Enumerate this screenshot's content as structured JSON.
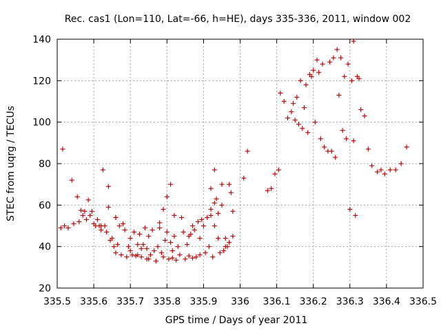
{
  "chart_data": {
    "type": "scatter",
    "title": "Rec. cas1 (Lon=110, Lat=-66, h=HE), days 335-336, 2011, window 002",
    "xlabel": "GPS time / Days of year 2011",
    "ylabel": "STEC from uqrg / TECUs",
    "xlim": [
      335.5,
      336.5
    ],
    "ylim": [
      20,
      140
    ],
    "xticks": [
      "335.5",
      "335.6",
      "335.7",
      "335.8",
      "335.9",
      "336",
      "336.1",
      "336.2",
      "336.3",
      "336.4",
      "336.5"
    ],
    "yticks": [
      "20",
      "40",
      "60",
      "80",
      "100",
      "120",
      "140"
    ],
    "grid": true,
    "marker": "+",
    "color": "#c80000",
    "points": [
      [
        335.51,
        49
      ],
      [
        335.515,
        87
      ],
      [
        335.52,
        50
      ],
      [
        335.53,
        49
      ],
      [
        335.54,
        72
      ],
      [
        335.545,
        51
      ],
      [
        335.555,
        64
      ],
      [
        335.56,
        52
      ],
      [
        335.565,
        57.5
      ],
      [
        335.57,
        55
      ],
      [
        335.575,
        57
      ],
      [
        335.58,
        53
      ],
      [
        335.585,
        62.5
      ],
      [
        335.59,
        55
      ],
      [
        335.595,
        57
      ],
      [
        335.6,
        51
      ],
      [
        335.605,
        50
      ],
      [
        335.61,
        53
      ],
      [
        335.615,
        50
      ],
      [
        335.62,
        48
      ],
      [
        335.625,
        77
      ],
      [
        335.63,
        50
      ],
      [
        335.635,
        47
      ],
      [
        335.64,
        59
      ],
      [
        335.64,
        69
      ],
      [
        335.645,
        43
      ],
      [
        335.65,
        44
      ],
      [
        335.655,
        40
      ],
      [
        335.66,
        54
      ],
      [
        335.66,
        37
      ],
      [
        335.665,
        41
      ],
      [
        335.67,
        50
      ],
      [
        335.675,
        36
      ],
      [
        335.68,
        51
      ],
      [
        335.685,
        48
      ],
      [
        335.69,
        35
      ],
      [
        335.695,
        40
      ],
      [
        335.7,
        44
      ],
      [
        335.7,
        38
      ],
      [
        335.705,
        36
      ],
      [
        335.71,
        47
      ],
      [
        335.715,
        35.5
      ],
      [
        335.72,
        41
      ],
      [
        335.72,
        36
      ],
      [
        335.725,
        46
      ],
      [
        335.73,
        39
      ],
      [
        335.73,
        35
      ],
      [
        335.735,
        41
      ],
      [
        335.74,
        49
      ],
      [
        335.745,
        39
      ],
      [
        335.745,
        34
      ],
      [
        335.75,
        45
      ],
      [
        335.755,
        36
      ],
      [
        335.76,
        48
      ],
      [
        335.765,
        38
      ],
      [
        335.77,
        33
      ],
      [
        335.775,
        40
      ],
      [
        335.78,
        49
      ],
      [
        335.78,
        51.5
      ],
      [
        335.785,
        37
      ],
      [
        335.79,
        35
      ],
      [
        335.795,
        43
      ],
      [
        335.8,
        47
      ],
      [
        335.805,
        34
      ],
      [
        335.81,
        42
      ],
      [
        335.815,
        38
      ],
      [
        335.815,
        34.5
      ],
      [
        335.82,
        55
      ],
      [
        335.82,
        45
      ],
      [
        335.825,
        33.5
      ],
      [
        335.83,
        40
      ],
      [
        335.835,
        36
      ],
      [
        335.84,
        54
      ],
      [
        335.845,
        47
      ],
      [
        335.85,
        34
      ],
      [
        335.855,
        41
      ],
      [
        335.86,
        45
      ],
      [
        335.86,
        35.5
      ],
      [
        335.865,
        46
      ],
      [
        335.87,
        34.5
      ],
      [
        335.875,
        48
      ],
      [
        335.88,
        35
      ],
      [
        335.885,
        52
      ],
      [
        335.89,
        44
      ],
      [
        335.89,
        36
      ],
      [
        335.895,
        53
      ],
      [
        335.9,
        50
      ],
      [
        335.905,
        37
      ],
      [
        335.91,
        54
      ],
      [
        335.915,
        40
      ],
      [
        335.92,
        55
      ],
      [
        335.92,
        58
      ],
      [
        335.925,
        35
      ],
      [
        335.93,
        50
      ],
      [
        335.935,
        63
      ],
      [
        335.94,
        44
      ],
      [
        335.945,
        37
      ],
      [
        335.95,
        60
      ],
      [
        335.955,
        38
      ],
      [
        335.96,
        40
      ],
      [
        335.965,
        40
      ],
      [
        335.97,
        70
      ],
      [
        335.975,
        66
      ],
      [
        335.98,
        57
      ],
      [
        335.62,
        50
      ],
      [
        335.66,
        54
      ],
      [
        335.75,
        34
      ],
      [
        335.79,
        58
      ],
      [
        335.8,
        64
      ],
      [
        335.81,
        70
      ],
      [
        335.87,
        50
      ],
      [
        335.92,
        68
      ],
      [
        335.93,
        61
      ],
      [
        335.93,
        77
      ],
      [
        335.94,
        56
      ],
      [
        335.95,
        70
      ],
      [
        335.96,
        44
      ],
      [
        335.97,
        42
      ],
      [
        335.98,
        45
      ],
      [
        336.01,
        73
      ],
      [
        336.02,
        86
      ],
      [
        336.075,
        67
      ],
      [
        336.085,
        68
      ],
      [
        336.095,
        75
      ],
      [
        336.105,
        77
      ],
      [
        336.11,
        114
      ],
      [
        336.12,
        110
      ],
      [
        336.13,
        102
      ],
      [
        336.14,
        105
      ],
      [
        336.145,
        109
      ],
      [
        336.15,
        101
      ],
      [
        336.155,
        112
      ],
      [
        336.16,
        99
      ],
      [
        336.165,
        120
      ],
      [
        336.17,
        97
      ],
      [
        336.175,
        107
      ],
      [
        336.18,
        118
      ],
      [
        336.185,
        95
      ],
      [
        336.19,
        123
      ],
      [
        336.195,
        122
      ],
      [
        336.2,
        125
      ],
      [
        336.205,
        100
      ],
      [
        336.21,
        130
      ],
      [
        336.215,
        124
      ],
      [
        336.22,
        92
      ],
      [
        336.225,
        128
      ],
      [
        336.23,
        88
      ],
      [
        336.24,
        86
      ],
      [
        336.245,
        129
      ],
      [
        336.25,
        86
      ],
      [
        336.255,
        131
      ],
      [
        336.26,
        83
      ],
      [
        336.265,
        135
      ],
      [
        336.27,
        113
      ],
      [
        336.275,
        131
      ],
      [
        336.28,
        96
      ],
      [
        336.285,
        122
      ],
      [
        336.29,
        92
      ],
      [
        336.295,
        128
      ],
      [
        336.3,
        58
      ],
      [
        336.305,
        120
      ],
      [
        336.31,
        91
      ],
      [
        336.31,
        139
      ],
      [
        336.315,
        55
      ],
      [
        336.32,
        122
      ],
      [
        336.325,
        121
      ],
      [
        336.33,
        106
      ],
      [
        336.34,
        103
      ],
      [
        336.35,
        87
      ],
      [
        336.36,
        79
      ],
      [
        336.375,
        76
      ],
      [
        336.385,
        77
      ],
      [
        336.395,
        75
      ],
      [
        336.41,
        77
      ],
      [
        336.425,
        77
      ],
      [
        336.44,
        80
      ],
      [
        336.455,
        88
      ]
    ]
  }
}
